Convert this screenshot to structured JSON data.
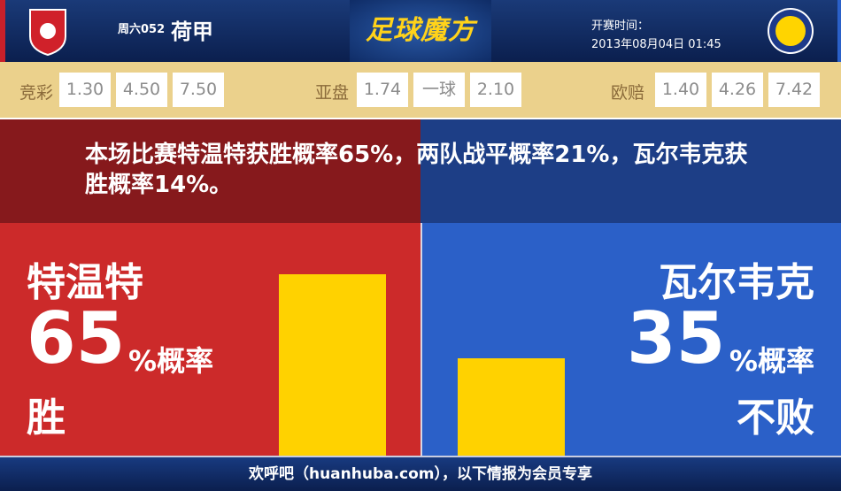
{
  "header": {
    "match_no": "周六052",
    "league": "荷甲",
    "brand": "足球魔方",
    "kickoff_label": "开赛时间：",
    "kickoff_time": "2013年08月04日 01:45",
    "home_crest": "fc-twente-crest",
    "away_crest": "rkc-waalwijk-crest"
  },
  "odds": {
    "jc": {
      "label": "竞彩",
      "values": [
        "1.30",
        "4.50",
        "7.50"
      ]
    },
    "asian": {
      "label": "亚盘",
      "values": [
        "1.74",
        "一球",
        "2.10"
      ]
    },
    "euro": {
      "label": "欧赔",
      "values": [
        "1.40",
        "4.26",
        "7.42"
      ]
    }
  },
  "summary": "本场比赛特温特获胜概率65%，两队战平概率21%，瓦尔韦克获胜概率14%。",
  "home": {
    "name": "特温特",
    "percent": "65",
    "percent_suffix": "%概率",
    "outcome": "胜",
    "value": 65,
    "color": "#cc2a2a"
  },
  "away": {
    "name": "瓦尔韦克",
    "percent": "35",
    "percent_suffix": "%概率",
    "outcome": "不败",
    "value": 35,
    "color": "#2b60c8"
  },
  "bar_color": "#ffd200",
  "footer": "欢呼吧（huanhuba.com），以下情报为会员专享"
}
